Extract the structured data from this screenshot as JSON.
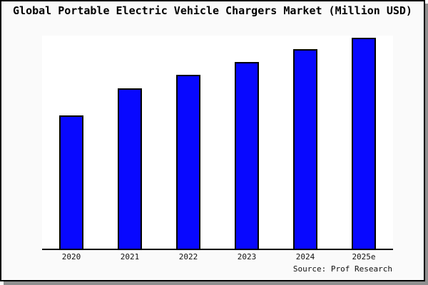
{
  "title": "Global Portable Electric Vehicle Chargers Market (Million USD)",
  "source_note": "Source: Prof Research",
  "colors": {
    "bar_fill": "#0808ff",
    "bar_border": "#000000",
    "frame_background": "#fafafa",
    "plot_background": "#ffffff",
    "frame_border": "#000000",
    "frame_shadow": "#8f8f8f",
    "axis_line": "#000000"
  },
  "chart_data": {
    "type": "bar",
    "title": "Global Portable Electric Vehicle Chargers Market (Million USD)",
    "categories": [
      "2020",
      "2021",
      "2022",
      "2023",
      "2024",
      "2025e"
    ],
    "values": [
      187,
      225,
      244,
      262,
      280,
      296
    ],
    "values_note": "y-axis has no tick labels; values are relative bar heights read from the plot (plot full height = 299)",
    "xlabel": "",
    "ylabel": "",
    "ylim": [
      0,
      299
    ],
    "grid": false,
    "legend": false,
    "bar_color": "#0808ff",
    "source": "Source: Prof Research"
  }
}
